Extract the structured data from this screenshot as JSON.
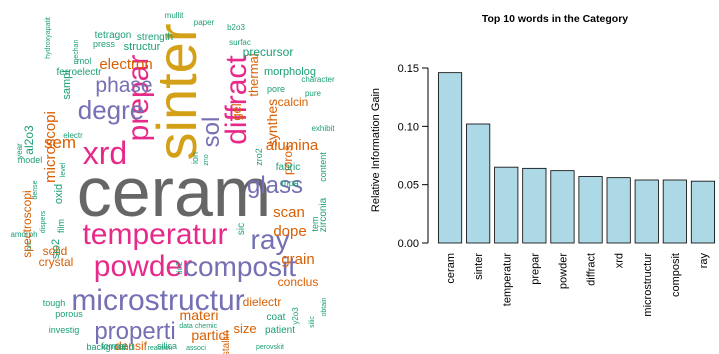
{
  "wordcloud": {
    "words": [
      {
        "text": "ceram",
        "color": "#666666"
      },
      {
        "text": "sinter",
        "color": "#d4a017"
      },
      {
        "text": "prepar",
        "color": "#e7298a"
      },
      {
        "text": "diffract",
        "color": "#e7298a"
      },
      {
        "text": "xrd",
        "color": "#e7298a"
      },
      {
        "text": "degre",
        "color": "#7570b3"
      },
      {
        "text": "temperatur",
        "color": "#e7298a"
      },
      {
        "text": "powder",
        "color": "#e7298a"
      },
      {
        "text": "composit",
        "color": "#7570b3"
      },
      {
        "text": "microstructur",
        "color": "#7570b3"
      },
      {
        "text": "properti",
        "color": "#7570b3"
      },
      {
        "text": "ray",
        "color": "#7570b3"
      },
      {
        "text": "glass",
        "color": "#7570b3"
      },
      {
        "text": "phase",
        "color": "#7570b3"
      },
      {
        "text": "sol",
        "color": "#7570b3"
      },
      {
        "text": "electron",
        "color": "#d95f02"
      },
      {
        "text": "microscopi",
        "color": "#d95f02"
      },
      {
        "text": "sem",
        "color": "#d95f02"
      },
      {
        "text": "alumina",
        "color": "#d95f02"
      },
      {
        "text": "scan",
        "color": "#d95f02"
      },
      {
        "text": "dope",
        "color": "#d95f02"
      },
      {
        "text": "synthes",
        "color": "#d95f02"
      },
      {
        "text": "grain",
        "color": "#d95f02"
      },
      {
        "text": "gel",
        "color": "#d95f02"
      },
      {
        "text": "thermal",
        "color": "#d95f02"
      },
      {
        "text": "materi",
        "color": "#d95f02"
      },
      {
        "text": "densif",
        "color": "#d95f02"
      },
      {
        "text": "particl",
        "color": "#d95f02"
      },
      {
        "text": "size",
        "color": "#d95f02"
      },
      {
        "text": "crystal",
        "color": "#d95f02"
      },
      {
        "text": "solid",
        "color": "#d95f02"
      },
      {
        "text": "spectroscopi",
        "color": "#d95f02"
      },
      {
        "text": "conclus",
        "color": "#d95f02"
      },
      {
        "text": "dielectr",
        "color": "#d95f02"
      },
      {
        "text": "calcin",
        "color": "#d95f02"
      },
      {
        "text": "poros",
        "color": "#d95f02"
      },
      {
        "text": "structur",
        "color": "#1b9e77"
      },
      {
        "text": "precursor",
        "color": "#1b9e77"
      },
      {
        "text": "tetragon",
        "color": "#1b9e77"
      },
      {
        "text": "strength",
        "color": "#1b9e77"
      },
      {
        "text": "morpholog",
        "color": "#1b9e77"
      },
      {
        "text": "ferroelectr",
        "color": "#1b9e77"
      },
      {
        "text": "pore",
        "color": "#1b9e77"
      },
      {
        "text": "fabric",
        "color": "#1b9e77"
      },
      {
        "text": "mpa",
        "color": "#1b9e77"
      },
      {
        "text": "coat",
        "color": "#1b9e77"
      },
      {
        "text": "patient",
        "color": "#1b9e77"
      },
      {
        "text": "format",
        "color": "#1b9e77"
      },
      {
        "text": "silica",
        "color": "#1b9e77"
      },
      {
        "text": "background",
        "color": "#1b9e77"
      },
      {
        "text": "porous",
        "color": "#1b9e77"
      },
      {
        "text": "tough",
        "color": "#1b9e77"
      },
      {
        "text": "investig",
        "color": "#1b9e77"
      },
      {
        "text": "model",
        "color": "#1b9e77"
      },
      {
        "text": "al2o3",
        "color": "#1b9e77"
      },
      {
        "text": "sampl",
        "color": "#1b9e77"
      },
      {
        "text": "oxid",
        "color": "#1b9e77"
      },
      {
        "text": "film",
        "color": "#1b9e77"
      },
      {
        "text": "sio2",
        "color": "#1b9e77"
      },
      {
        "text": "content",
        "color": "#1b9e77"
      },
      {
        "text": "zirconia",
        "color": "#1b9e77"
      },
      {
        "text": "tem",
        "color": "#1b9e77"
      },
      {
        "text": "sic",
        "color": "#1b9e77"
      },
      {
        "text": "ion",
        "color": "#1b9e77"
      },
      {
        "text": "zro2",
        "color": "#1b9e77"
      },
      {
        "text": "press",
        "color": "#1b9e77"
      },
      {
        "text": "mol",
        "color": "#1b9e77"
      },
      {
        "text": "mullit",
        "color": "#1b9e77"
      },
      {
        "text": "paper",
        "color": "#1b9e77"
      },
      {
        "text": "b2o3",
        "color": "#1b9e77"
      },
      {
        "text": "surfac",
        "color": "#1b9e77"
      },
      {
        "text": "character",
        "color": "#1b9e77"
      },
      {
        "text": "pure",
        "color": "#1b9e77"
      },
      {
        "text": "exhibit",
        "color": "#1b9e77"
      },
      {
        "text": "electr",
        "color": "#1b9e77"
      },
      {
        "text": "year",
        "color": "#1b9e77"
      },
      {
        "text": "amorph",
        "color": "#1b9e77"
      },
      {
        "text": "chemic",
        "color": "#1b9e77"
      },
      {
        "text": "data",
        "color": "#1b9e77"
      },
      {
        "text": "perovskit",
        "color": "#1b9e77"
      },
      {
        "text": "associ",
        "color": "#1b9e77"
      },
      {
        "text": "reaction",
        "color": "#1b9e77"
      },
      {
        "text": "crystallin",
        "color": "#d95f02"
      },
      {
        "text": "tio2",
        "color": "#1b9e77"
      },
      {
        "text": "y2o3",
        "color": "#1b9e77"
      },
      {
        "text": "hydroxyapatit",
        "color": "#1b9e77"
      },
      {
        "text": "mechan",
        "color": "#1b9e77"
      },
      {
        "text": "level",
        "color": "#1b9e77"
      },
      {
        "text": "dense",
        "color": "#1b9e77"
      },
      {
        "text": "dispers",
        "color": "#1b9e77"
      },
      {
        "text": "obtain",
        "color": "#1b9e77"
      },
      {
        "text": "silic",
        "color": "#1b9e77"
      },
      {
        "text": "nm",
        "color": "#1b9e77"
      },
      {
        "text": "zno",
        "color": "#1b9e77"
      }
    ]
  },
  "chart_data": {
    "type": "bar",
    "title": "Top 10 words in the Category",
    "ylabel": "Relative Information Gain",
    "xlabel": "",
    "categories": [
      "ceram",
      "sinter",
      "temperatur",
      "prepar",
      "powder",
      "diffract",
      "xrd",
      "microstructur",
      "composit",
      "ray"
    ],
    "values": [
      0.146,
      0.102,
      0.065,
      0.064,
      0.062,
      0.057,
      0.056,
      0.054,
      0.054,
      0.053
    ],
    "ylim": [
      0,
      0.15
    ],
    "yticks": [
      "0.00",
      "0.05",
      "0.10",
      "0.15"
    ],
    "bar_color": "#add8e6",
    "grid": false
  }
}
